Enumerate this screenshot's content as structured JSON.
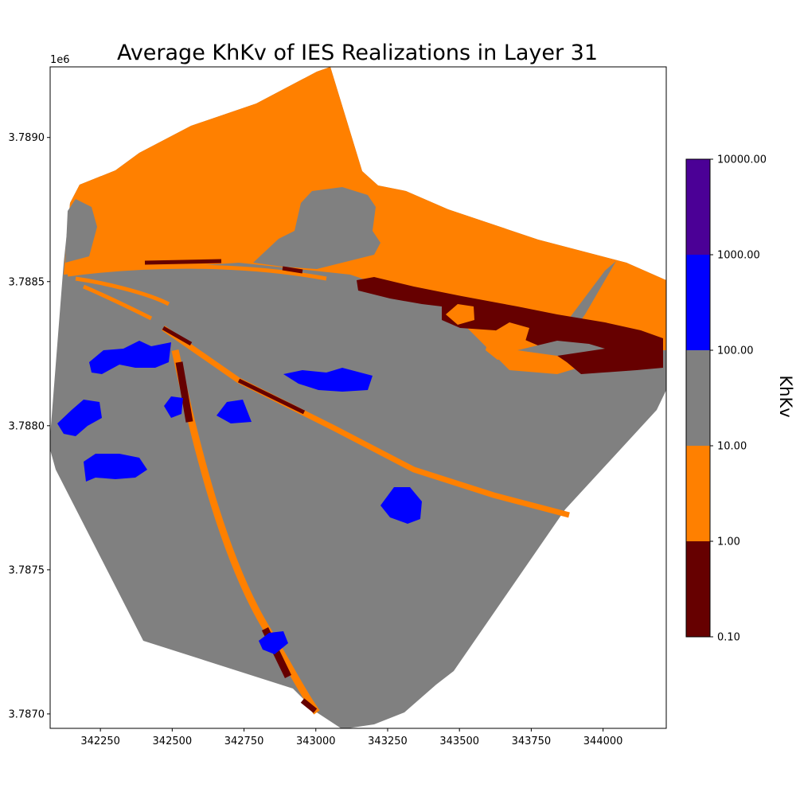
{
  "chart_data": {
    "type": "heatmap",
    "title": "Average KhKv of IES Realizations in Layer 31",
    "xlabel": "",
    "ylabel": "",
    "y_offset_label": "1e6",
    "xlim": [
      342075,
      344220
    ],
    "ylim": [
      3.78695,
      3.789245
    ],
    "x_ticks": [
      342250,
      342500,
      342750,
      343000,
      343250,
      343500,
      343750,
      344000
    ],
    "y_ticks": [
      3.787,
      3.7875,
      3.788,
      3.7885,
      3.789
    ],
    "y_tick_labels": [
      "3.7870",
      "3.7875",
      "3.7880",
      "3.7885",
      "3.7890"
    ],
    "grid": false,
    "colorbar": {
      "label": "KhKv",
      "scale": "log",
      "boundaries": [
        0.1,
        1,
        10,
        100,
        1000,
        10000
      ],
      "tick_labels": [
        "0.10",
        "1.00",
        "10.00",
        "100.00",
        "1000.00",
        "10000.00"
      ],
      "colors": [
        "#660000",
        "#ff8000",
        "#808080",
        "#0000ff",
        "#4b0096"
      ]
    },
    "classes": [
      {
        "range": "0.10 - 1.00",
        "color": "#660000"
      },
      {
        "range": "1.00 - 10.00",
        "color": "#ff8000"
      },
      {
        "range": "10.00 - 100.00",
        "color": "#808080"
      },
      {
        "range": "100.00 - 1000.00",
        "color": "#0000ff"
      },
      {
        "range": "1000.00 - 10000.00",
        "color": "#4b0096"
      }
    ]
  }
}
